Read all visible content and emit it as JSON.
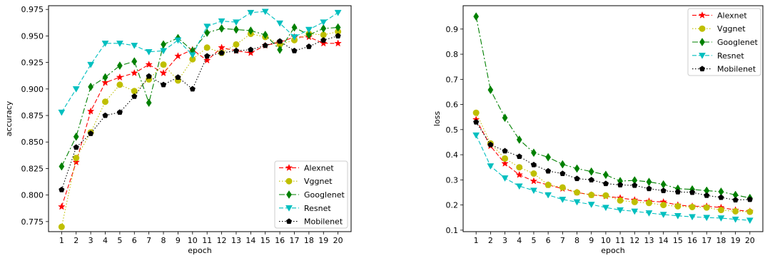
{
  "chart_data": [
    {
      "type": "line",
      "xlabel": "epoch",
      "ylabel": "accuracy",
      "x": [
        1,
        2,
        3,
        4,
        5,
        6,
        7,
        8,
        9,
        10,
        11,
        12,
        13,
        14,
        15,
        16,
        17,
        18,
        19,
        20
      ],
      "xlim": [
        0.1,
        20.9
      ],
      "ylim": [
        0.7655,
        0.9785
      ],
      "yticks": [
        0.775,
        0.8,
        0.825,
        0.85,
        0.875,
        0.9,
        0.925,
        0.95,
        0.975
      ],
      "ytick_labels": [
        "0.775",
        "0.800",
        "0.825",
        "0.850",
        "0.875",
        "0.900",
        "0.925",
        "0.950",
        "0.975"
      ],
      "legend_position": "lower-right",
      "series": [
        {
          "name": "Alexnet",
          "color": "#ff0000",
          "dash": "6,3",
          "marker": "star",
          "values": [
            0.789,
            0.831,
            0.879,
            0.906,
            0.911,
            0.915,
            0.923,
            0.915,
            0.931,
            0.937,
            0.927,
            0.939,
            0.936,
            0.934,
            0.941,
            0.944,
            0.949,
            0.949,
            0.943,
            0.943
          ]
        },
        {
          "name": "Vggnet",
          "color": "#bfbf00",
          "dash": "1.5,2.5",
          "marker": "circle",
          "values": [
            0.77,
            0.835,
            0.859,
            0.888,
            0.904,
            0.898,
            0.909,
            0.923,
            0.908,
            0.928,
            0.939,
            0.934,
            0.942,
            0.952,
            0.949,
            0.942,
            0.946,
            0.952,
            0.951,
            0.954
          ]
        },
        {
          "name": "Googlenet",
          "color": "#008000",
          "dash": "8,3,2,3",
          "marker": "diamond",
          "values": [
            0.827,
            0.855,
            0.902,
            0.911,
            0.922,
            0.926,
            0.887,
            0.942,
            0.948,
            0.936,
            0.953,
            0.957,
            0.956,
            0.955,
            0.951,
            0.937,
            0.958,
            0.951,
            0.957,
            0.958
          ]
        },
        {
          "name": "Resnet",
          "color": "#00bfbf",
          "dash": "6,3",
          "marker": "triangle-down",
          "values": [
            0.878,
            0.9,
            0.923,
            0.943,
            0.943,
            0.941,
            0.935,
            0.936,
            0.946,
            0.932,
            0.959,
            0.964,
            0.963,
            0.972,
            0.973,
            0.962,
            0.949,
            0.956,
            0.963,
            0.972
          ]
        },
        {
          "name": "Mobilenet",
          "color": "#000000",
          "dash": "1.5,2.5",
          "marker": "pentagon",
          "values": [
            0.805,
            0.845,
            0.858,
            0.875,
            0.878,
            0.893,
            0.912,
            0.904,
            0.911,
            0.9,
            0.931,
            0.934,
            0.936,
            0.937,
            0.941,
            0.945,
            0.936,
            0.94,
            0.946,
            0.95
          ]
        }
      ]
    },
    {
      "type": "line",
      "xlabel": "epoch",
      "ylabel": "loss",
      "x": [
        1,
        2,
        3,
        4,
        5,
        6,
        7,
        8,
        9,
        10,
        11,
        12,
        13,
        14,
        15,
        16,
        17,
        18,
        19,
        20
      ],
      "xlim": [
        0.1,
        20.9
      ],
      "ylim": [
        0.094,
        0.993
      ],
      "yticks": [
        0.1,
        0.2,
        0.3,
        0.4,
        0.5,
        0.6,
        0.7,
        0.8,
        0.9
      ],
      "ytick_labels": [
        "0.1",
        "0.2",
        "0.3",
        "0.4",
        "0.5",
        "0.6",
        "0.7",
        "0.8",
        "0.9"
      ],
      "legend_position": "upper-right",
      "series": [
        {
          "name": "Alexnet",
          "color": "#ff0000",
          "dash": "6,3",
          "marker": "star",
          "values": [
            0.54,
            0.435,
            0.365,
            0.32,
            0.295,
            0.28,
            0.265,
            0.25,
            0.24,
            0.235,
            0.228,
            0.22,
            0.215,
            0.212,
            0.2,
            0.195,
            0.195,
            0.19,
            0.18,
            0.175
          ]
        },
        {
          "name": "Vggnet",
          "color": "#bfbf00",
          "dash": "1.5,2.5",
          "marker": "circle",
          "values": [
            0.567,
            0.445,
            0.385,
            0.35,
            0.325,
            0.28,
            0.27,
            0.25,
            0.24,
            0.238,
            0.218,
            0.212,
            0.208,
            0.2,
            0.195,
            0.192,
            0.19,
            0.18,
            0.175,
            0.173
          ]
        },
        {
          "name": "Googlenet",
          "color": "#008000",
          "dash": "8,3,2,3",
          "marker": "diamond",
          "values": [
            0.95,
            0.658,
            0.547,
            0.46,
            0.408,
            0.39,
            0.362,
            0.345,
            0.333,
            0.32,
            0.295,
            0.298,
            0.292,
            0.282,
            0.265,
            0.262,
            0.257,
            0.253,
            0.24,
            0.228
          ]
        },
        {
          "name": "Resnet",
          "color": "#00bfbf",
          "dash": "6,3",
          "marker": "triangle-down",
          "values": [
            0.478,
            0.355,
            0.307,
            0.275,
            0.258,
            0.24,
            0.222,
            0.212,
            0.202,
            0.19,
            0.18,
            0.175,
            0.168,
            0.162,
            0.157,
            0.153,
            0.15,
            0.148,
            0.143,
            0.139
          ]
        },
        {
          "name": "Mobilenet",
          "color": "#000000",
          "dash": "1.5,2.5",
          "marker": "pentagon",
          "values": [
            0.53,
            0.44,
            0.415,
            0.393,
            0.36,
            0.335,
            0.325,
            0.305,
            0.3,
            0.285,
            0.28,
            0.278,
            0.265,
            0.257,
            0.252,
            0.25,
            0.238,
            0.23,
            0.22,
            0.222
          ]
        }
      ]
    }
  ]
}
